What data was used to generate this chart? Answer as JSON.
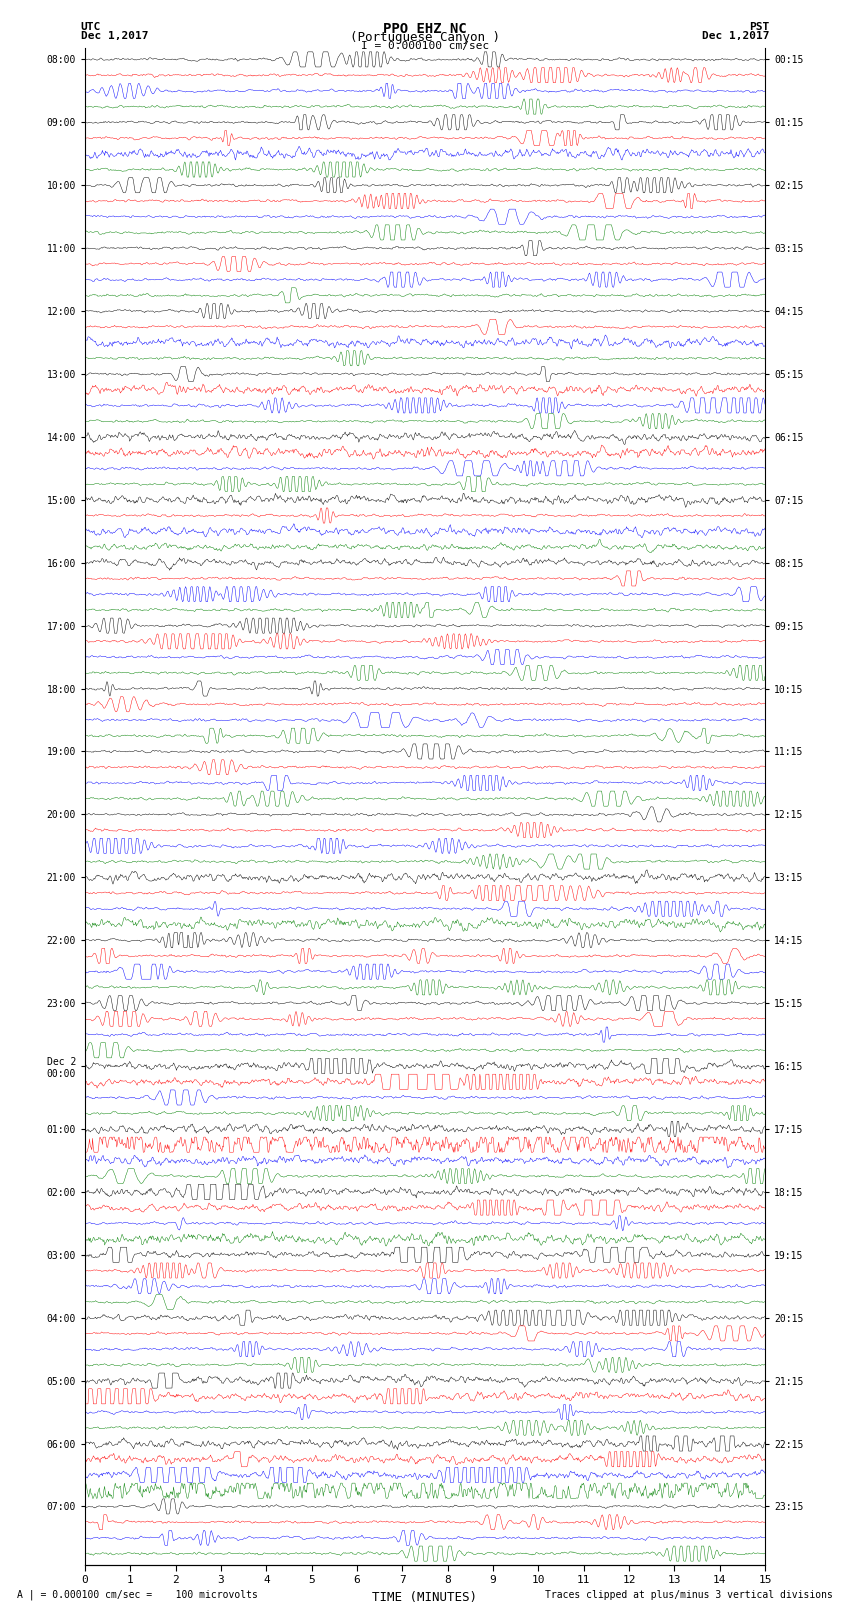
{
  "title_line1": "PPO EHZ NC",
  "title_line2": "(Portuguese Canyon )",
  "title_line3": "I = 0.000100 cm/sec",
  "top_left_line1": "UTC",
  "top_left_line2": "Dec 1,2017",
  "top_right_line1": "PST",
  "top_right_line2": "Dec 1,2017",
  "bottom_left": "A | = 0.000100 cm/sec =    100 microvolts",
  "bottom_right": "Traces clipped at plus/minus 3 vertical divisions",
  "xlabel": "TIME (MINUTES)",
  "xlim": [
    0,
    15
  ],
  "xticks": [
    0,
    1,
    2,
    3,
    4,
    5,
    6,
    7,
    8,
    9,
    10,
    11,
    12,
    13,
    14,
    15
  ],
  "colors": [
    "black",
    "red",
    "blue",
    "green"
  ],
  "background_color": "white",
  "fig_width": 8.5,
  "fig_height": 16.13,
  "dpi": 100,
  "utc_labels": [
    "08:00",
    "",
    "",
    "",
    "09:00",
    "",
    "",
    "",
    "10:00",
    "",
    "",
    "",
    "11:00",
    "",
    "",
    "",
    "12:00",
    "",
    "",
    "",
    "13:00",
    "",
    "",
    "",
    "14:00",
    "",
    "",
    "",
    "15:00",
    "",
    "",
    "",
    "16:00",
    "",
    "",
    "",
    "17:00",
    "",
    "",
    "",
    "18:00",
    "",
    "",
    "",
    "19:00",
    "",
    "",
    "",
    "20:00",
    "",
    "",
    "",
    "21:00",
    "",
    "",
    "",
    "22:00",
    "",
    "",
    "",
    "23:00",
    "",
    "",
    "",
    "Dec 2\n00:00",
    "",
    "",
    "",
    "01:00",
    "",
    "",
    "",
    "02:00",
    "",
    "",
    "",
    "03:00",
    "",
    "",
    "",
    "04:00",
    "",
    "",
    "",
    "05:00",
    "",
    "",
    "",
    "06:00",
    "",
    "",
    "",
    "07:00",
    "",
    "",
    ""
  ],
  "pst_labels": [
    "00:15",
    "",
    "",
    "",
    "01:15",
    "",
    "",
    "",
    "02:15",
    "",
    "",
    "",
    "03:15",
    "",
    "",
    "",
    "04:15",
    "",
    "",
    "",
    "05:15",
    "",
    "",
    "",
    "06:15",
    "",
    "",
    "",
    "07:15",
    "",
    "",
    "",
    "08:15",
    "",
    "",
    "",
    "09:15",
    "",
    "",
    "",
    "10:15",
    "",
    "",
    "",
    "11:15",
    "",
    "",
    "",
    "12:15",
    "",
    "",
    "",
    "13:15",
    "",
    "",
    "",
    "14:15",
    "",
    "",
    "",
    "15:15",
    "",
    "",
    "",
    "16:15",
    "",
    "",
    "",
    "17:15",
    "",
    "",
    "",
    "18:15",
    "",
    "",
    "",
    "19:15",
    "",
    "",
    "",
    "20:15",
    "",
    "",
    "",
    "21:15",
    "",
    "",
    "",
    "22:15",
    "",
    "",
    "",
    "23:15",
    "",
    "",
    ""
  ],
  "special_rows": {
    "64": 4.0,
    "65": 3.5,
    "68": 4.0,
    "69": 3.5,
    "72": 3.0,
    "73": 2.5,
    "76": 2.5,
    "80": 2.0,
    "84": 3.5,
    "85": 3.0,
    "88": 6.0,
    "89": 5.0,
    "90": 4.0,
    "91": 3.0
  }
}
